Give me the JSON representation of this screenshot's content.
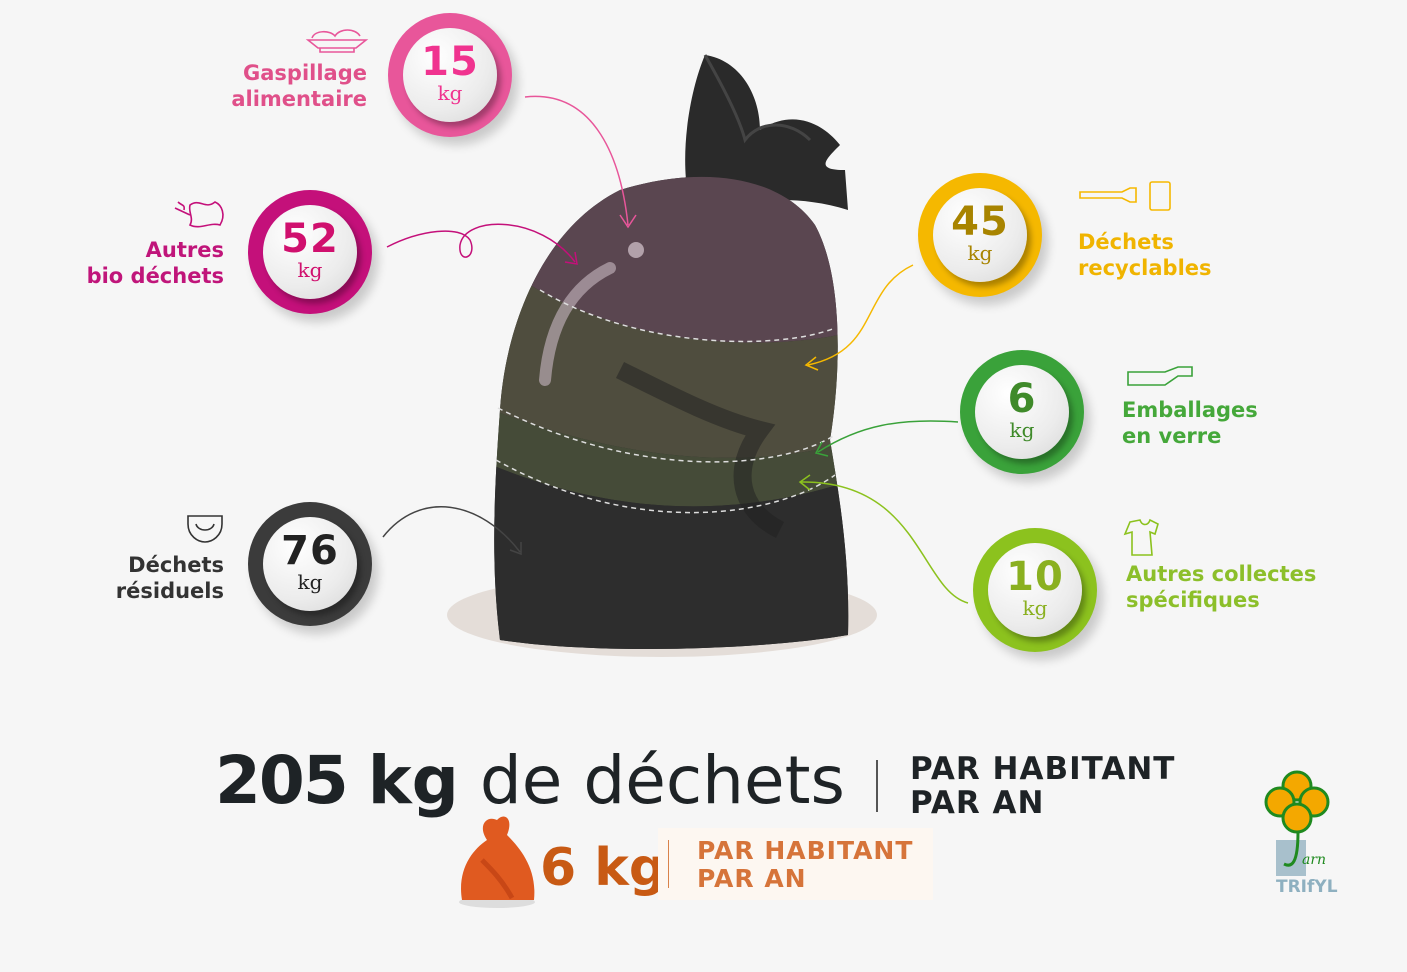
{
  "categories": [
    {
      "id": "gaspillage",
      "value": "15",
      "unit": "kg",
      "label_line1": "Gaspillage",
      "label_line2": "alimentaire",
      "icon": "food-plate-icon",
      "ring_color": "#e8569a",
      "number_color": "#f0338f",
      "label_color": "#e0508a"
    },
    {
      "id": "bio",
      "value": "52",
      "unit": "kg",
      "label_line1": "Autres",
      "label_line2": "bio déchets",
      "icon": "leaf-branch-icon",
      "ring_color": "#c4107a",
      "number_color": "#d0106e",
      "label_color": "#c0157a"
    },
    {
      "id": "residuels",
      "value": "76",
      "unit": "kg",
      "label_line1": "Déchets",
      "label_line2": "résiduels",
      "icon": "diaper-icon",
      "ring_color": "#3b3b3b",
      "number_color": "#222222",
      "label_color": "#333333"
    },
    {
      "id": "recyclables",
      "value": "45",
      "unit": "kg",
      "label_line1": "Déchets",
      "label_line2": "recyclables",
      "icon": "bottle-can-icon",
      "ring_color": "#f5b800",
      "number_color": "#a88400",
      "label_color": "#f0b400"
    },
    {
      "id": "verre",
      "value": "6",
      "unit": "kg",
      "label_line1": "Emballages",
      "label_line2": "en verre",
      "icon": "glass-bottle-icon",
      "ring_color": "#3aa23a",
      "number_color": "#3f8a2a",
      "label_color": "#45a83a"
    },
    {
      "id": "specifiques",
      "value": "10",
      "unit": "kg",
      "label_line1": "Autres collectes",
      "label_line2": "spécifiques",
      "icon": "tshirt-icon",
      "ring_color": "#8cc21e",
      "number_color": "#8ab020",
      "label_color": "#8cbf2a"
    }
  ],
  "total": {
    "value": "205",
    "unit": "kg",
    "text": "de déchets",
    "per_line1": "PAR HABITANT",
    "per_line2": "PAR AN"
  },
  "secondary": {
    "value": "6 kg",
    "per_line1": "PAR HABITANT",
    "per_line2": "PAR AN",
    "color": "#c85a14",
    "icon": "orange-bag-icon"
  },
  "logo": {
    "text": "TRIfYL",
    "script": "Tarn"
  }
}
